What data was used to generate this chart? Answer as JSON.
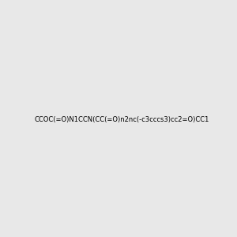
{
  "smiles": "CCOC(=O)N1CCN(CC(=O)n2nc(-c3cccs3)cc2=O)CC1",
  "image_size": 300,
  "background_color": "#e8e8e8",
  "atom_colors": {
    "N": "#0000ff",
    "O": "#ff0000",
    "S": "#cccc00"
  },
  "bond_color": "#000000",
  "title": "",
  "dpi": 100
}
